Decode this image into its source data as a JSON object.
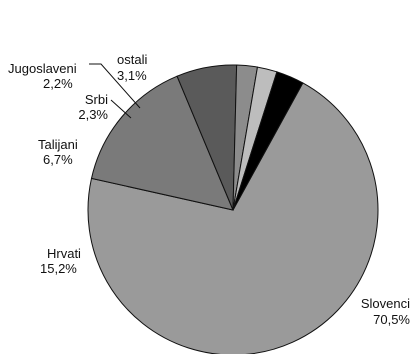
{
  "chart_data": {
    "type": "pie",
    "title": "",
    "slices": [
      {
        "label": "Slovenci",
        "value_label": "70,5%",
        "value": 70.5,
        "color": "#9a9a9a"
      },
      {
        "label": "Hrvati",
        "value_label": "15,2%",
        "value": 15.2,
        "color": "#7a7a7a"
      },
      {
        "label": "Talijani",
        "value_label": "6,7%",
        "value": 6.7,
        "color": "#5a5a5a"
      },
      {
        "label": "Srbi",
        "value_label": "2,3%",
        "value": 2.3,
        "color": "#8c8c8c"
      },
      {
        "label": "Jugoslaveni",
        "value_label": "2,2%",
        "value": 2.2,
        "color": "#bdbdbd"
      },
      {
        "label": "ostali",
        "value_label": "3,1%",
        "value": 3.1,
        "color": "#000000"
      }
    ]
  }
}
